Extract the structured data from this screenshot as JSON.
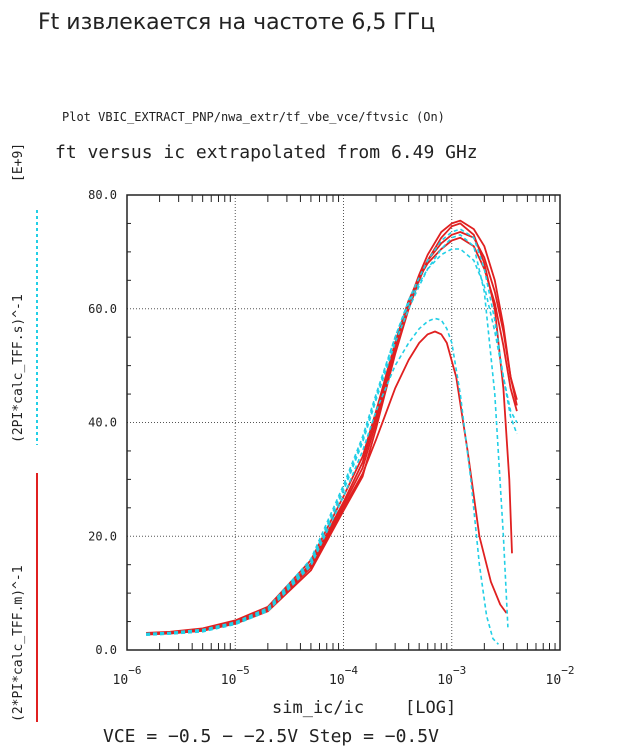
{
  "page": {
    "heading": "Ft извлекается на частоте 6,5 ГГц"
  },
  "chart_data": {
    "type": "line",
    "title": "Plot VBIC_EXTRACT_PNP/nwa_extr/tf_vbe_vce/ftvsic (On)",
    "subtitle": "ft versus ic extrapolated from 6.49 GHz",
    "xlabel": "sim_ic/ic",
    "xscale_label": "[LOG]",
    "xscale": "log",
    "xlim": [
      1e-06,
      0.01
    ],
    "x_ticks": [
      {
        "base": "10",
        "exp": "−6"
      },
      {
        "base": "10",
        "exp": "−5"
      },
      {
        "base": "10",
        "exp": "−4"
      },
      {
        "base": "10",
        "exp": "−3"
      },
      {
        "base": "10",
        "exp": "−2"
      }
    ],
    "ylim": [
      0,
      80
    ],
    "y_ticks": [
      "0.0",
      "20.0",
      "40.0",
      "60.0",
      "80.0"
    ],
    "y_scale_label": "[E+9]",
    "ylabel_measured": "(2*PI*calc_TFF.m)^-1",
    "ylabel_simulated": "(2PI*calc_TFF.s)^-1",
    "footer": "VCE = −0.5 − −2.5V Step = −0.5V",
    "grid": true,
    "colors": {
      "measured": "#e02020",
      "simulated": "#22cfe6",
      "axes": "#222222",
      "grid": "#555555"
    },
    "series": [
      {
        "kind": "measured",
        "x": [
          1.5e-06,
          2.5e-06,
          5e-06,
          1e-05,
          2e-05,
          5e-05,
          0.0001,
          0.00015,
          0.0002,
          0.0003,
          0.0004,
          0.0005,
          0.0006,
          0.0007,
          0.0008,
          0.0009,
          0.0011,
          0.0014,
          0.0018,
          0.0023,
          0.0028,
          0.0032
        ],
        "y": [
          2.8,
          2.9,
          3.4,
          4.7,
          7.0,
          14.5,
          25.0,
          31.0,
          37.0,
          46.0,
          51.0,
          54.0,
          55.5,
          56.0,
          55.5,
          54.0,
          48.0,
          35.0,
          20.0,
          12.0,
          8.0,
          6.5
        ]
      },
      {
        "kind": "measured",
        "x": [
          1.5e-06,
          2.5e-06,
          5e-06,
          1e-05,
          2e-05,
          5e-05,
          0.0001,
          0.00015,
          0.0002,
          0.0003,
          0.0004,
          0.0005,
          0.0006,
          0.0008,
          0.001,
          0.0012,
          0.0016,
          0.002,
          0.0025,
          0.003,
          0.0034,
          0.0036
        ],
        "y": [
          2.7,
          2.9,
          3.4,
          4.6,
          6.8,
          14.0,
          24.5,
          30.5,
          39.0,
          52.0,
          60.0,
          65.0,
          68.5,
          72.5,
          74.5,
          75.0,
          73.0,
          68.0,
          60.0,
          46.0,
          30.0,
          17.0
        ]
      },
      {
        "kind": "measured",
        "x": [
          1.5e-06,
          2.5e-06,
          5e-06,
          1e-05,
          2e-05,
          5e-05,
          0.0001,
          0.00015,
          0.0002,
          0.0003,
          0.0004,
          0.0005,
          0.0006,
          0.0008,
          0.001,
          0.0012,
          0.0016,
          0.002,
          0.0025,
          0.003,
          0.0035,
          0.004
        ],
        "y": [
          2.8,
          3.0,
          3.5,
          4.8,
          7.1,
          14.8,
          25.5,
          32.0,
          40.0,
          53.0,
          61.0,
          66.0,
          69.5,
          73.5,
          75.0,
          75.5,
          74.0,
          71.0,
          65.0,
          57.0,
          48.0,
          43.0
        ]
      },
      {
        "kind": "measured",
        "x": [
          1.5e-06,
          2.5e-06,
          5e-06,
          1e-05,
          2e-05,
          5e-05,
          0.0001,
          0.00015,
          0.0002,
          0.0003,
          0.0004,
          0.0005,
          0.0006,
          0.0008,
          0.001,
          0.0012,
          0.0016,
          0.002,
          0.0025,
          0.003,
          0.0035,
          0.004
        ],
        "y": [
          2.9,
          3.1,
          3.6,
          5.0,
          7.3,
          15.2,
          26.0,
          33.0,
          41.0,
          53.5,
          61.0,
          65.5,
          68.5,
          71.5,
          73.0,
          73.5,
          72.5,
          69.0,
          63.0,
          56.0,
          48.0,
          44.0
        ]
      },
      {
        "kind": "measured",
        "x": [
          1.5e-06,
          2.5e-06,
          5e-06,
          1e-05,
          2e-05,
          5e-05,
          0.0001,
          0.00015,
          0.0002,
          0.0003,
          0.0004,
          0.0005,
          0.0006,
          0.0008,
          0.001,
          0.0012,
          0.0016,
          0.002,
          0.0025,
          0.003,
          0.0035,
          0.004
        ],
        "y": [
          3.0,
          3.2,
          3.8,
          5.2,
          7.6,
          15.8,
          27.0,
          34.0,
          42.0,
          54.0,
          61.5,
          65.5,
          68.0,
          70.5,
          72.0,
          72.5,
          71.0,
          67.0,
          61.0,
          53.5,
          46.0,
          42.0
        ]
      },
      {
        "kind": "simulated",
        "x": [
          1.5e-06,
          2.5e-06,
          5e-06,
          1e-05,
          2e-05,
          5e-05,
          0.0001,
          0.00015,
          0.0002,
          0.0003,
          0.0004,
          0.0005,
          0.0006,
          0.0007,
          0.0008,
          0.0009,
          0.001,
          0.0012,
          0.0015,
          0.0018,
          0.0021,
          0.0024,
          0.0027
        ],
        "y": [
          2.6,
          2.8,
          3.2,
          4.5,
          6.8,
          14.8,
          27.0,
          35.0,
          42.0,
          50.0,
          54.0,
          56.5,
          57.8,
          58.3,
          58.0,
          56.5,
          54.0,
          45.0,
          30.0,
          15.0,
          6.0,
          2.0,
          1.0
        ]
      },
      {
        "kind": "simulated",
        "x": [
          1.5e-06,
          2.5e-06,
          5e-06,
          1e-05,
          2e-05,
          5e-05,
          0.0001,
          0.00015,
          0.0002,
          0.0003,
          0.0004,
          0.0005,
          0.0006,
          0.0008,
          0.001,
          0.0012,
          0.0016,
          0.002,
          0.0025,
          0.003,
          0.0033
        ],
        "y": [
          2.7,
          2.9,
          3.3,
          4.6,
          7.0,
          15.2,
          28.0,
          36.5,
          44.0,
          54.0,
          60.0,
          64.0,
          67.0,
          70.5,
          72.5,
          73.0,
          71.0,
          63.0,
          45.0,
          20.0,
          4.0
        ]
      },
      {
        "kind": "simulated",
        "x": [
          1.5e-06,
          2.5e-06,
          5e-06,
          1e-05,
          2e-05,
          5e-05,
          0.0001,
          0.00015,
          0.0002,
          0.0003,
          0.0004,
          0.0005,
          0.0006,
          0.0008,
          0.001,
          0.0012,
          0.0016,
          0.002,
          0.0025,
          0.003,
          0.0035,
          0.004
        ],
        "y": [
          2.8,
          3.0,
          3.4,
          4.7,
          7.2,
          15.5,
          28.5,
          37.0,
          44.5,
          55.0,
          61.5,
          65.5,
          68.5,
          72.0,
          73.5,
          74.0,
          72.5,
          67.0,
          58.0,
          48.0,
          41.0,
          38.0
        ]
      },
      {
        "kind": "simulated",
        "x": [
          1.5e-06,
          2.5e-06,
          5e-06,
          1e-05,
          2e-05,
          5e-05,
          0.0001,
          0.00015,
          0.0002,
          0.0003,
          0.0004,
          0.0005,
          0.0006,
          0.0008,
          0.001,
          0.0012,
          0.0016,
          0.002,
          0.0025,
          0.003,
          0.0035,
          0.004
        ],
        "y": [
          2.9,
          3.1,
          3.6,
          4.9,
          7.4,
          16.0,
          29.0,
          37.5,
          45.0,
          55.0,
          61.0,
          64.5,
          67.0,
          69.5,
          70.5,
          70.5,
          68.5,
          64.0,
          56.0,
          48.0,
          42.0,
          40.0
        ]
      }
    ]
  }
}
